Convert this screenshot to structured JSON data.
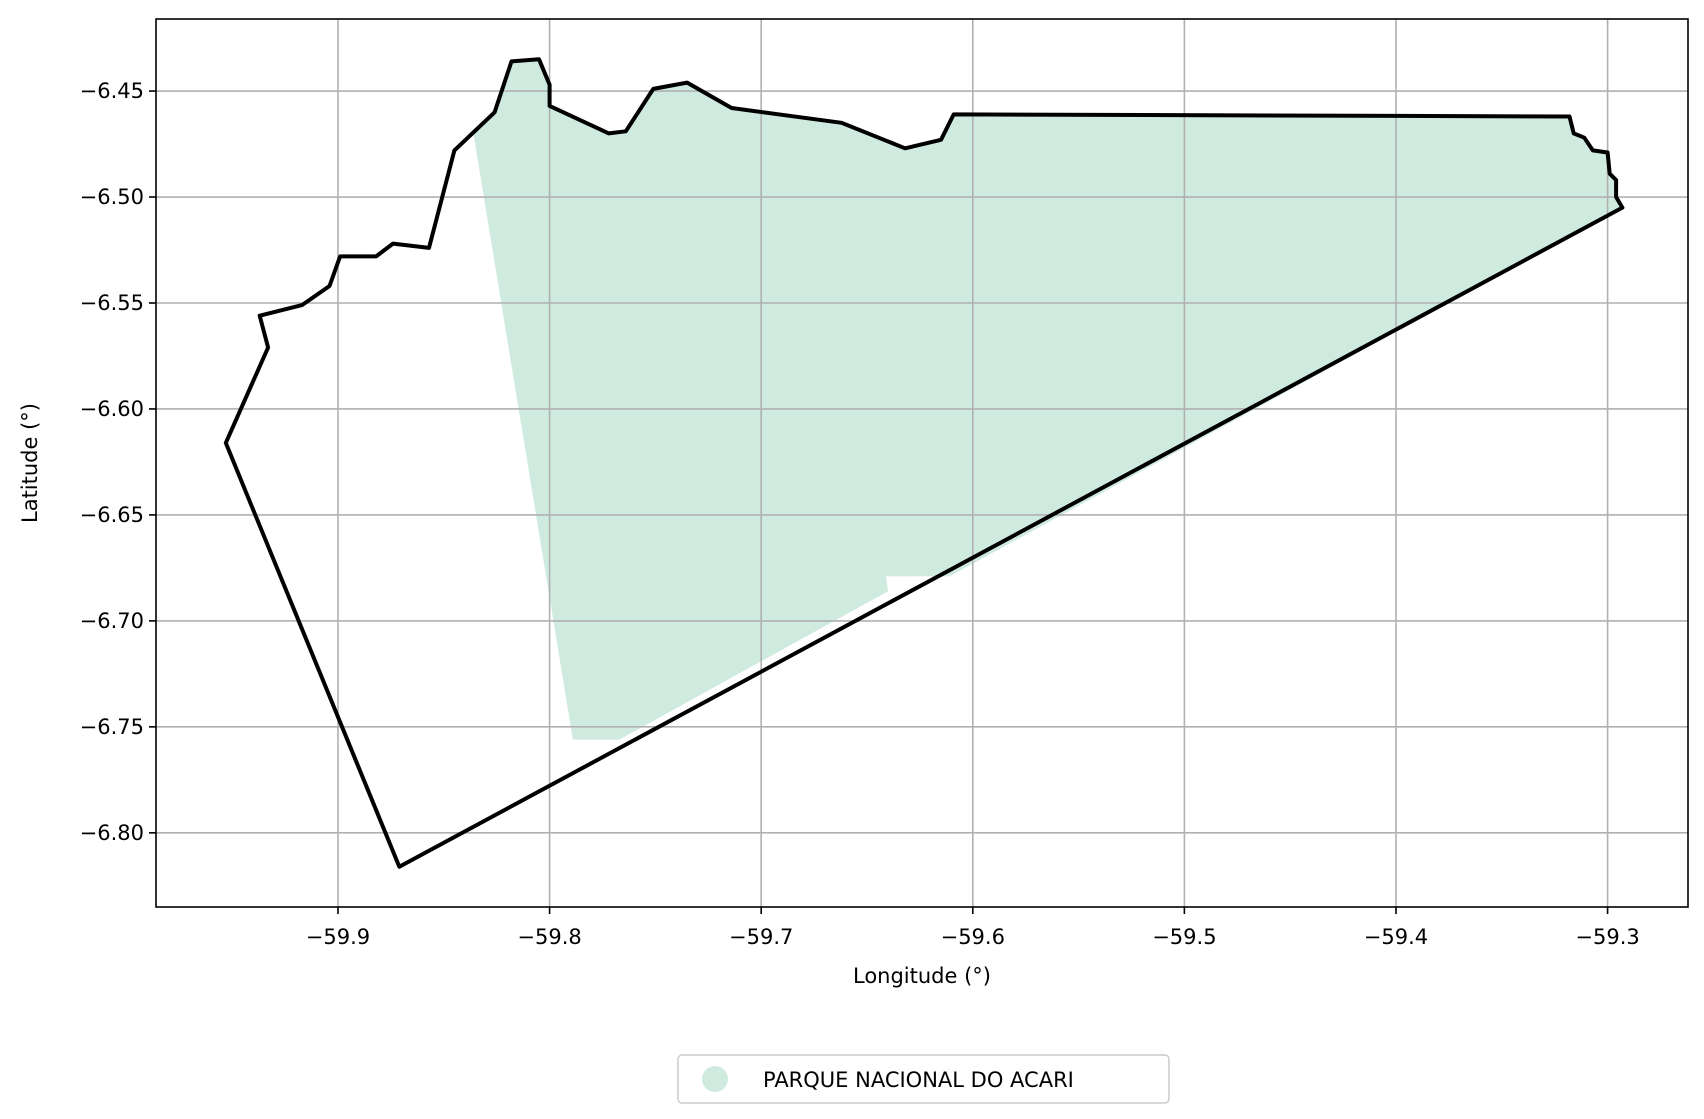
{
  "chart_data": {
    "type": "map",
    "xlabel": "Longitude (°)",
    "ylabel": "Latitude (°)",
    "xlim": [
      -59.986,
      -59.262
    ],
    "ylim": [
      -6.835,
      -6.416
    ],
    "grid": true,
    "x_ticks": [
      {
        "value": -59.9,
        "label": "−59.9"
      },
      {
        "value": -59.8,
        "label": "−59.8"
      },
      {
        "value": -59.7,
        "label": "−59.7"
      },
      {
        "value": -59.6,
        "label": "−59.6"
      },
      {
        "value": -59.5,
        "label": "−59.5"
      },
      {
        "value": -59.4,
        "label": "−59.4"
      },
      {
        "value": -59.3,
        "label": "−59.3"
      }
    ],
    "y_ticks": [
      {
        "value": -6.45,
        "label": "−6.45"
      },
      {
        "value": -6.5,
        "label": "−6.50"
      },
      {
        "value": -6.55,
        "label": "−6.55"
      },
      {
        "value": -6.6,
        "label": "−6.60"
      },
      {
        "value": -6.65,
        "label": "−6.65"
      },
      {
        "value": -6.7,
        "label": "−6.70"
      },
      {
        "value": -6.75,
        "label": "−6.75"
      },
      {
        "value": -6.8,
        "label": "−6.80"
      }
    ],
    "layers": [
      {
        "name": "PARQUE NACIONAL DO ACARI",
        "role": "protected-area",
        "color": "#cfebdf",
        "coordinates": [
          [
            -59.836,
            -6.47
          ],
          [
            -59.826,
            -6.46
          ],
          [
            -59.818,
            -6.436
          ],
          [
            -59.805,
            -6.435
          ],
          [
            -59.8,
            -6.447
          ],
          [
            -59.8,
            -6.457
          ],
          [
            -59.772,
            -6.47
          ],
          [
            -59.764,
            -6.469
          ],
          [
            -59.751,
            -6.449
          ],
          [
            -59.735,
            -6.446
          ],
          [
            -59.714,
            -6.458
          ],
          [
            -59.662,
            -6.465
          ],
          [
            -59.632,
            -6.477
          ],
          [
            -59.615,
            -6.473
          ],
          [
            -59.609,
            -6.461
          ],
          [
            -59.318,
            -6.462
          ],
          [
            -59.316,
            -6.47
          ],
          [
            -59.311,
            -6.472
          ],
          [
            -59.307,
            -6.478
          ],
          [
            -59.3,
            -6.479
          ],
          [
            -59.299,
            -6.489
          ],
          [
            -59.296,
            -6.492
          ],
          [
            -59.296,
            -6.5
          ],
          [
            -59.293,
            -6.505
          ],
          [
            -59.611,
            -6.679
          ],
          [
            -59.641,
            -6.679
          ],
          [
            -59.64,
            -6.686
          ],
          [
            -59.767,
            -6.756
          ],
          [
            -59.789,
            -6.756
          ]
        ]
      },
      {
        "name": "boundary",
        "role": "outline",
        "color": "#000000",
        "coordinates": [
          [
            -59.953,
            -6.616
          ],
          [
            -59.933,
            -6.571
          ],
          [
            -59.937,
            -6.556
          ],
          [
            -59.917,
            -6.551
          ],
          [
            -59.904,
            -6.542
          ],
          [
            -59.899,
            -6.528
          ],
          [
            -59.882,
            -6.528
          ],
          [
            -59.874,
            -6.522
          ],
          [
            -59.857,
            -6.524
          ],
          [
            -59.845,
            -6.478
          ],
          [
            -59.826,
            -6.46
          ],
          [
            -59.818,
            -6.436
          ],
          [
            -59.805,
            -6.435
          ],
          [
            -59.8,
            -6.447
          ],
          [
            -59.8,
            -6.457
          ],
          [
            -59.772,
            -6.47
          ],
          [
            -59.764,
            -6.469
          ],
          [
            -59.751,
            -6.449
          ],
          [
            -59.735,
            -6.446
          ],
          [
            -59.714,
            -6.458
          ],
          [
            -59.662,
            -6.465
          ],
          [
            -59.632,
            -6.477
          ],
          [
            -59.615,
            -6.473
          ],
          [
            -59.609,
            -6.461
          ],
          [
            -59.318,
            -6.462
          ],
          [
            -59.316,
            -6.47
          ],
          [
            -59.311,
            -6.472
          ],
          [
            -59.307,
            -6.478
          ],
          [
            -59.3,
            -6.479
          ],
          [
            -59.299,
            -6.489
          ],
          [
            -59.296,
            -6.492
          ],
          [
            -59.296,
            -6.5
          ],
          [
            -59.293,
            -6.505
          ],
          [
            -59.871,
            -6.816
          ],
          [
            -59.953,
            -6.616
          ]
        ]
      }
    ],
    "legend": {
      "placement": "bottom-center",
      "entries": [
        {
          "label": "PARQUE NACIONAL DO ACARI",
          "color": "#cfebdf",
          "marker": "circle"
        }
      ]
    }
  }
}
